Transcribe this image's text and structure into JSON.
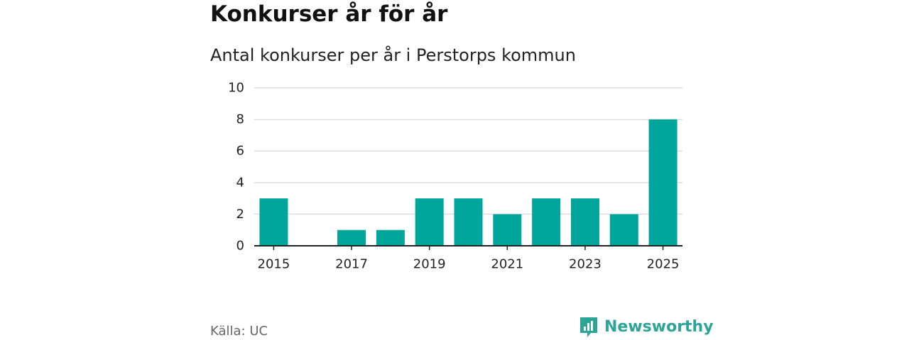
{
  "header": {
    "title": "Konkurser år för år",
    "subtitle": "Antal konkurser per år i Perstorps kommun"
  },
  "chart_data": {
    "type": "bar",
    "categories": [
      "2015",
      "2016",
      "2017",
      "2018",
      "2019",
      "2020",
      "2021",
      "2022",
      "2023",
      "2024",
      "2025"
    ],
    "values": [
      3,
      0,
      1,
      1,
      3,
      3,
      2,
      3,
      3,
      2,
      8
    ],
    "x_tick_labels": [
      "2015",
      "2017",
      "2019",
      "2021",
      "2023",
      "2025"
    ],
    "y_ticks": [
      0,
      2,
      4,
      6,
      8,
      10
    ],
    "ylim": [
      0,
      10
    ],
    "grid": true,
    "bar_color": "#00a69c"
  },
  "footer": {
    "source": "Källa: UC",
    "brand_name": "Newsworthy",
    "brand_color": "#2ba597",
    "brand_icon": "newsworthy-logo-icon"
  }
}
